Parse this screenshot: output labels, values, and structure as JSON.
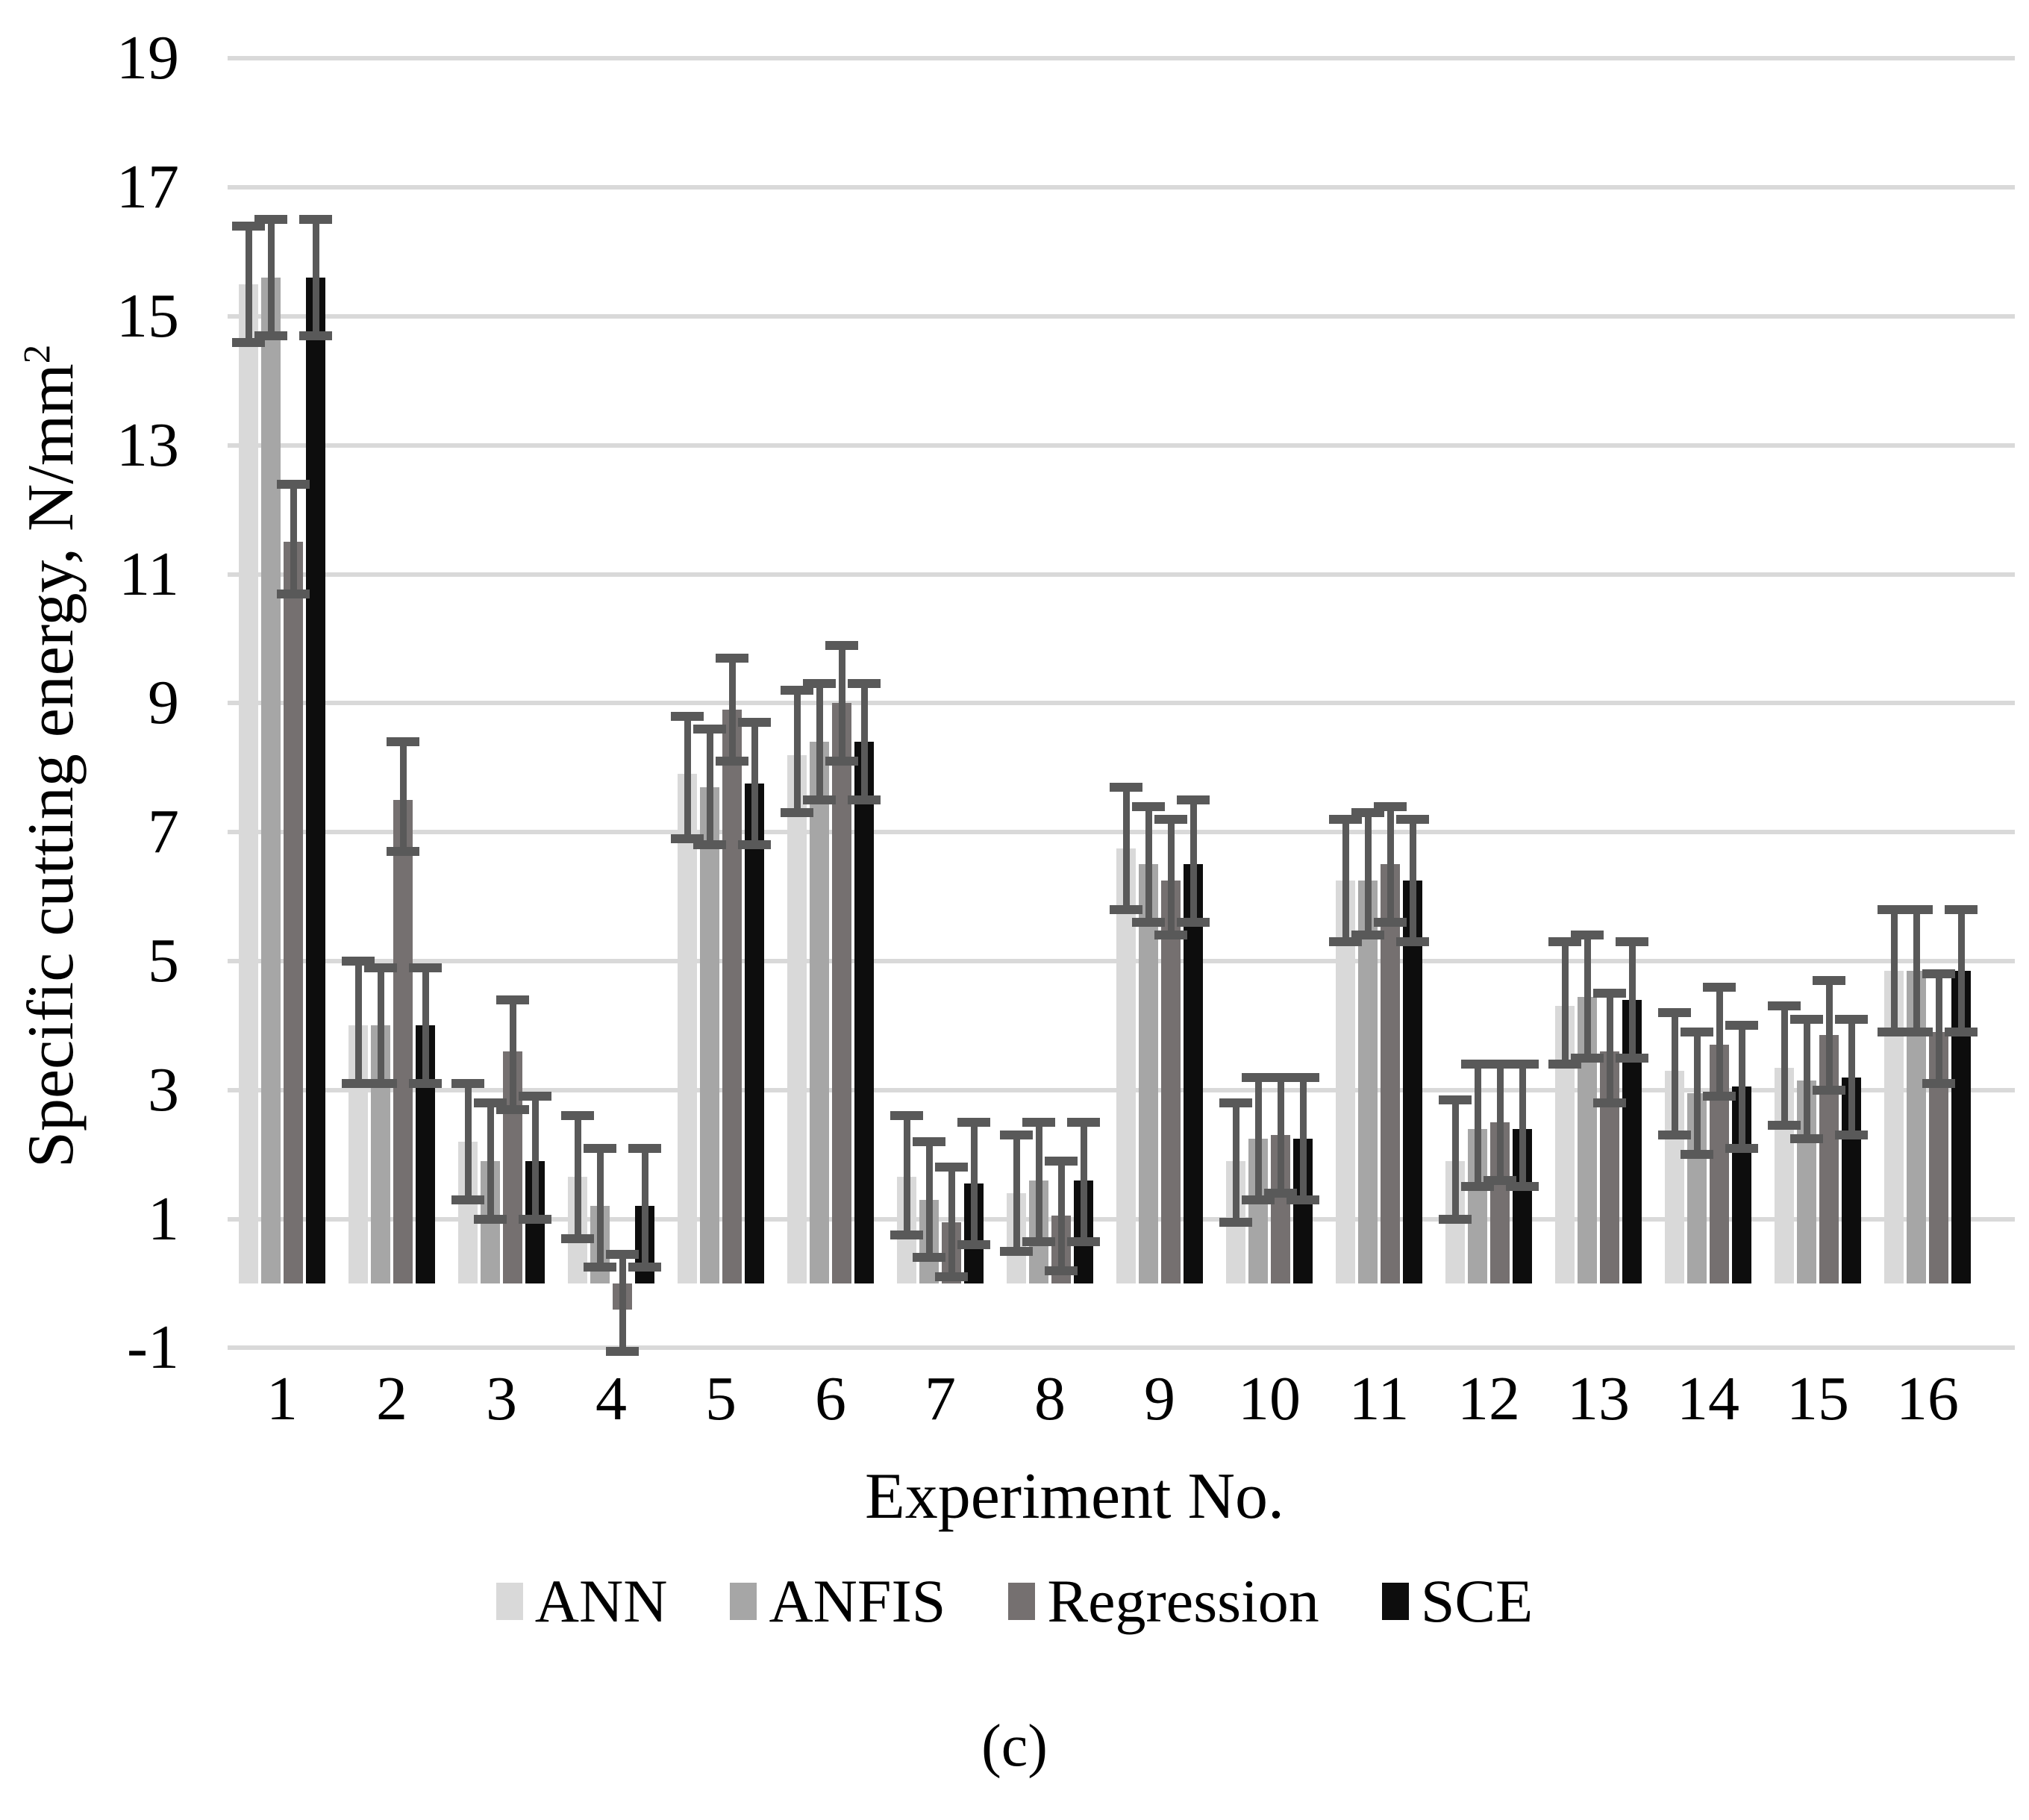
{
  "figure": {
    "caption": "(c)"
  },
  "chart_data": {
    "type": "bar",
    "title": "",
    "xlabel": "Experiment No.",
    "ylabel_main": "Specific cutting energy, N/mm",
    "ylabel_sup": "2",
    "ylim": [
      -1,
      19
    ],
    "y_ticks": [
      19,
      17,
      15,
      13,
      11,
      9,
      7,
      5,
      3,
      1,
      -1
    ],
    "grid": "horizontal",
    "legend_position": "bottom",
    "gridline_color": "#d9d9d9",
    "error_bar_color": "#595959",
    "categories": [
      "1",
      "2",
      "3",
      "4",
      "5",
      "6",
      "7",
      "8",
      "9",
      "10",
      "11",
      "12",
      "13",
      "14",
      "15",
      "16"
    ],
    "series": [
      {
        "name": "ANN",
        "color": "#d9d9d9",
        "values": [
          15.5,
          4.0,
          2.2,
          1.65,
          7.9,
          8.2,
          1.65,
          1.4,
          6.75,
          1.9,
          6.25,
          1.9,
          4.3,
          3.3,
          3.35,
          4.85
        ],
        "err_lo": [
          14.6,
          3.1,
          1.3,
          0.7,
          6.9,
          7.3,
          0.75,
          0.5,
          5.8,
          0.95,
          5.3,
          1.0,
          3.4,
          2.3,
          2.45,
          3.9
        ],
        "err_hi": [
          16.4,
          5.0,
          3.1,
          2.6,
          8.8,
          9.2,
          2.6,
          2.3,
          7.7,
          2.8,
          7.2,
          2.85,
          5.3,
          4.2,
          4.3,
          5.8
        ]
      },
      {
        "name": "ANFIS",
        "color": "#a6a6a6",
        "values": [
          15.6,
          4.0,
          1.9,
          1.2,
          7.7,
          8.4,
          1.3,
          1.6,
          6.5,
          2.25,
          6.25,
          2.4,
          4.45,
          2.95,
          3.15,
          4.85
        ],
        "err_lo": [
          14.7,
          3.1,
          1.0,
          0.25,
          6.8,
          7.5,
          0.4,
          0.65,
          5.6,
          1.3,
          5.4,
          1.5,
          3.5,
          2.0,
          2.25,
          3.9
        ],
        "err_hi": [
          16.5,
          4.9,
          2.8,
          2.1,
          8.6,
          9.3,
          2.2,
          2.5,
          7.4,
          3.2,
          7.3,
          3.4,
          5.4,
          3.9,
          4.1,
          5.8
        ]
      },
      {
        "name": "Regression",
        "color": "#757070",
        "values": [
          11.5,
          7.5,
          3.6,
          -0.4,
          8.9,
          9.0,
          0.95,
          1.05,
          6.25,
          2.3,
          6.5,
          2.5,
          3.6,
          3.7,
          3.85,
          3.9
        ],
        "err_lo": [
          10.7,
          6.7,
          2.7,
          -1.05,
          8.1,
          8.1,
          0.1,
          0.2,
          5.4,
          1.4,
          5.6,
          1.6,
          2.8,
          2.9,
          3.0,
          3.1
        ],
        "err_hi": [
          12.4,
          8.4,
          4.4,
          0.45,
          9.7,
          9.9,
          1.8,
          1.9,
          7.2,
          3.2,
          7.4,
          3.4,
          4.5,
          4.6,
          4.7,
          4.8
        ]
      },
      {
        "name": "SCE",
        "color": "#0d0d0d",
        "values": [
          15.6,
          4.0,
          1.9,
          1.2,
          7.75,
          8.4,
          1.55,
          1.6,
          6.5,
          2.25,
          6.25,
          2.4,
          4.4,
          3.05,
          3.2,
          4.85
        ],
        "err_lo": [
          14.7,
          3.1,
          1.0,
          0.25,
          6.8,
          7.5,
          0.6,
          0.65,
          5.6,
          1.3,
          5.3,
          1.5,
          3.5,
          2.1,
          2.3,
          3.9
        ],
        "err_hi": [
          16.5,
          4.9,
          2.9,
          2.1,
          8.7,
          9.3,
          2.5,
          2.5,
          7.5,
          3.2,
          7.2,
          3.4,
          5.3,
          4.0,
          4.1,
          5.8
        ]
      }
    ]
  }
}
